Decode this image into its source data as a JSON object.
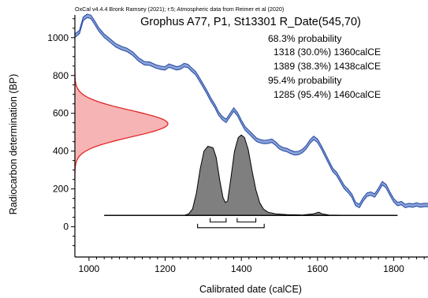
{
  "chart_data": {
    "type": "area",
    "software_line": "OxCal v4.4.4 Bronk Ramsey (2021); r:5; Atmospheric data from Reimer et al (2020)",
    "title": "Grophus A77, P1, St13301 R_Date(545,70)",
    "xlabel": "Calibrated date (calCE)",
    "ylabel": "Radiocarbon determination (BP)",
    "xlim": [
      963,
      1890
    ],
    "ylim": [
      -160,
      1120
    ],
    "x_ticks": [
      1000,
      1200,
      1400,
      1600,
      1800
    ],
    "y_ticks": [
      0,
      200,
      400,
      600,
      800,
      1000
    ],
    "ranges_text": {
      "h68": "68.3% probability",
      "r68a": "1318 (30.0%) 1360calCE",
      "r68b": "1389 (38.3%) 1438calCE",
      "h95": "95.4% probability",
      "r95a": "1285 (95.4%) 1460calCE"
    },
    "ranges_68": [
      [
        1318,
        1360
      ],
      [
        1389,
        1438
      ]
    ],
    "ranges_95": [
      [
        1285,
        1460
      ]
    ],
    "measurement": {
      "mean_bp": 545,
      "sigma": 70
    },
    "curve_band_halfwidth": 9,
    "calibration_curve": [
      [
        963,
        1010
      ],
      [
        975,
        1030
      ],
      [
        985,
        1100
      ],
      [
        995,
        1115
      ],
      [
        1005,
        1110
      ],
      [
        1015,
        1080
      ],
      [
        1025,
        1045
      ],
      [
        1040,
        1010
      ],
      [
        1055,
        985
      ],
      [
        1070,
        960
      ],
      [
        1085,
        945
      ],
      [
        1100,
        935
      ],
      [
        1115,
        915
      ],
      [
        1130,
        885
      ],
      [
        1145,
        865
      ],
      [
        1160,
        862
      ],
      [
        1175,
        848
      ],
      [
        1190,
        840
      ],
      [
        1200,
        838
      ],
      [
        1210,
        852
      ],
      [
        1220,
        845
      ],
      [
        1230,
        838
      ],
      [
        1240,
        842
      ],
      [
        1250,
        855
      ],
      [
        1260,
        850
      ],
      [
        1270,
        830
      ],
      [
        1280,
        812
      ],
      [
        1290,
        780
      ],
      [
        1300,
        745
      ],
      [
        1310,
        710
      ],
      [
        1320,
        672
      ],
      [
        1330,
        640
      ],
      [
        1340,
        600
      ],
      [
        1350,
        575
      ],
      [
        1360,
        560
      ],
      [
        1370,
        590
      ],
      [
        1380,
        620
      ],
      [
        1390,
        595
      ],
      [
        1400,
        555
      ],
      [
        1410,
        520
      ],
      [
        1420,
        500
      ],
      [
        1430,
        480
      ],
      [
        1440,
        460
      ],
      [
        1450,
        452
      ],
      [
        1460,
        448
      ],
      [
        1470,
        450
      ],
      [
        1480,
        455
      ],
      [
        1490,
        440
      ],
      [
        1500,
        420
      ],
      [
        1510,
        410
      ],
      [
        1520,
        405
      ],
      [
        1530,
        395
      ],
      [
        1540,
        388
      ],
      [
        1550,
        390
      ],
      [
        1560,
        400
      ],
      [
        1570,
        420
      ],
      [
        1580,
        450
      ],
      [
        1590,
        470
      ],
      [
        1600,
        455
      ],
      [
        1610,
        420
      ],
      [
        1620,
        380
      ],
      [
        1630,
        340
      ],
      [
        1640,
        300
      ],
      [
        1650,
        280
      ],
      [
        1660,
        245
      ],
      [
        1670,
        210
      ],
      [
        1680,
        190
      ],
      [
        1690,
        165
      ],
      [
        1700,
        120
      ],
      [
        1710,
        110
      ],
      [
        1720,
        145
      ],
      [
        1730,
        170
      ],
      [
        1740,
        175
      ],
      [
        1750,
        165
      ],
      [
        1760,
        195
      ],
      [
        1770,
        230
      ],
      [
        1780,
        215
      ],
      [
        1790,
        175
      ],
      [
        1800,
        140
      ],
      [
        1810,
        120
      ],
      [
        1820,
        125
      ],
      [
        1830,
        110
      ],
      [
        1840,
        115
      ],
      [
        1850,
        112
      ],
      [
        1860,
        118
      ],
      [
        1870,
        112
      ],
      [
        1880,
        115
      ],
      [
        1890,
        115
      ]
    ],
    "posterior_baseline": [
      1040,
      1810
    ],
    "posterior_density": [
      [
        1040,
        0
      ],
      [
        1250,
        0
      ],
      [
        1262,
        0.02
      ],
      [
        1272,
        0.08
      ],
      [
        1282,
        0.28
      ],
      [
        1292,
        0.58
      ],
      [
        1302,
        0.8
      ],
      [
        1312,
        0.86
      ],
      [
        1320,
        0.85
      ],
      [
        1326,
        0.84
      ],
      [
        1334,
        0.72
      ],
      [
        1344,
        0.42
      ],
      [
        1352,
        0.22
      ],
      [
        1358,
        0.16
      ],
      [
        1364,
        0.18
      ],
      [
        1372,
        0.45
      ],
      [
        1382,
        0.8
      ],
      [
        1392,
        0.97
      ],
      [
        1400,
        1.0
      ],
      [
        1408,
        0.97
      ],
      [
        1418,
        0.82
      ],
      [
        1428,
        0.56
      ],
      [
        1438,
        0.32
      ],
      [
        1448,
        0.16
      ],
      [
        1458,
        0.08
      ],
      [
        1470,
        0.04
      ],
      [
        1490,
        0.02
      ],
      [
        1520,
        0.01
      ],
      [
        1560,
        0.005
      ],
      [
        1590,
        0.02
      ],
      [
        1603,
        0.04
      ],
      [
        1612,
        0.02
      ],
      [
        1630,
        0.005
      ],
      [
        1700,
        0
      ],
      [
        1810,
        0
      ]
    ],
    "posterior_peak_bp": 485
  }
}
